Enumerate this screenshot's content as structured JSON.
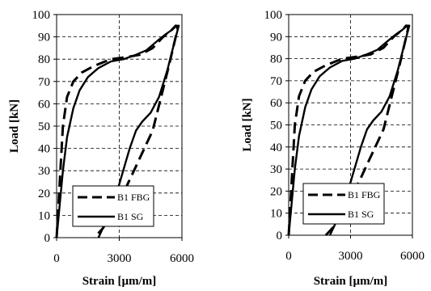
{
  "chart_data": [
    {
      "type": "line",
      "xlabel": "Strain [µm/m]",
      "ylabel": "Load [kN]",
      "xlim": [
        0,
        6000
      ],
      "ylim": [
        0,
        100
      ],
      "xticks": [
        "0",
        "3000",
        "6000"
      ],
      "yticks": [
        "0",
        "10",
        "20",
        "30",
        "40",
        "50",
        "60",
        "70",
        "80",
        "90",
        "100"
      ],
      "grid": true,
      "legend_position": "bottom-right",
      "series": [
        {
          "name": "B1 FBG",
          "style": "dashed",
          "x": [
            0,
            150,
            300,
            500,
            800,
            1200,
            1800,
            2600,
            3400,
            4000,
            4600,
            5100,
            5500,
            5700,
            5800,
            5700,
            5400,
            5000,
            4600,
            4200,
            3800,
            3400,
            3000,
            2600,
            2200,
            1800
          ],
          "y": [
            0,
            25,
            50,
            63,
            70,
            74,
            77,
            80,
            81,
            82,
            85,
            90,
            93,
            95,
            94,
            90,
            78,
            63,
            48,
            40,
            32,
            24,
            16,
            10,
            4,
            0
          ]
        },
        {
          "name": "B1 SG",
          "style": "solid",
          "x": [
            0,
            150,
            300,
            500,
            800,
            1100,
            1500,
            2000,
            2600,
            3200,
            3800,
            4300,
            4800,
            5200,
            5500,
            5750,
            5850,
            5650,
            5300,
            4900,
            4500,
            4100,
            3800,
            3500,
            3000,
            2500,
            2000
          ],
          "y": [
            0,
            15,
            30,
            45,
            58,
            66,
            72,
            76,
            79,
            80,
            82,
            84,
            88,
            91,
            93,
            95,
            95,
            88,
            75,
            63,
            56,
            52,
            48,
            40,
            24,
            10,
            0
          ]
        }
      ]
    },
    {
      "type": "line",
      "xlabel": "Strain [µm/m]",
      "ylabel": "Load [kN]",
      "xlim": [
        0,
        6000
      ],
      "ylim": [
        0,
        100
      ],
      "xticks": [
        "0",
        "3000",
        "6000"
      ],
      "yticks": [
        "0",
        "10",
        "20",
        "30",
        "40",
        "50",
        "60",
        "70",
        "80",
        "90",
        "100"
      ],
      "grid": true,
      "legend_position": "bottom-right",
      "series": [
        {
          "name": "B1 FBG",
          "style": "dashed",
          "x": [
            0,
            150,
            300,
            500,
            800,
            1200,
            1800,
            2600,
            3400,
            4000,
            4600,
            5100,
            5500,
            5700,
            5800,
            5700,
            5400,
            5000,
            4600,
            4200,
            3800,
            3400,
            3000,
            2600,
            2200,
            1800
          ],
          "y": [
            0,
            25,
            50,
            63,
            70,
            74,
            77,
            80,
            81,
            82,
            85,
            90,
            93,
            95,
            94,
            90,
            78,
            63,
            48,
            40,
            32,
            24,
            16,
            10,
            4,
            0
          ]
        },
        {
          "name": "B1 SG",
          "style": "solid",
          "x": [
            0,
            150,
            300,
            500,
            800,
            1100,
            1500,
            2000,
            2600,
            3200,
            3800,
            4300,
            4800,
            5200,
            5500,
            5750,
            5850,
            5650,
            5300,
            4900,
            4500,
            4100,
            3800,
            3500,
            3000,
            2500,
            2000
          ],
          "y": [
            0,
            15,
            30,
            45,
            58,
            66,
            72,
            76,
            79,
            80,
            82,
            84,
            88,
            91,
            93,
            95,
            95,
            88,
            75,
            63,
            56,
            52,
            48,
            40,
            24,
            10,
            0
          ]
        }
      ]
    }
  ]
}
